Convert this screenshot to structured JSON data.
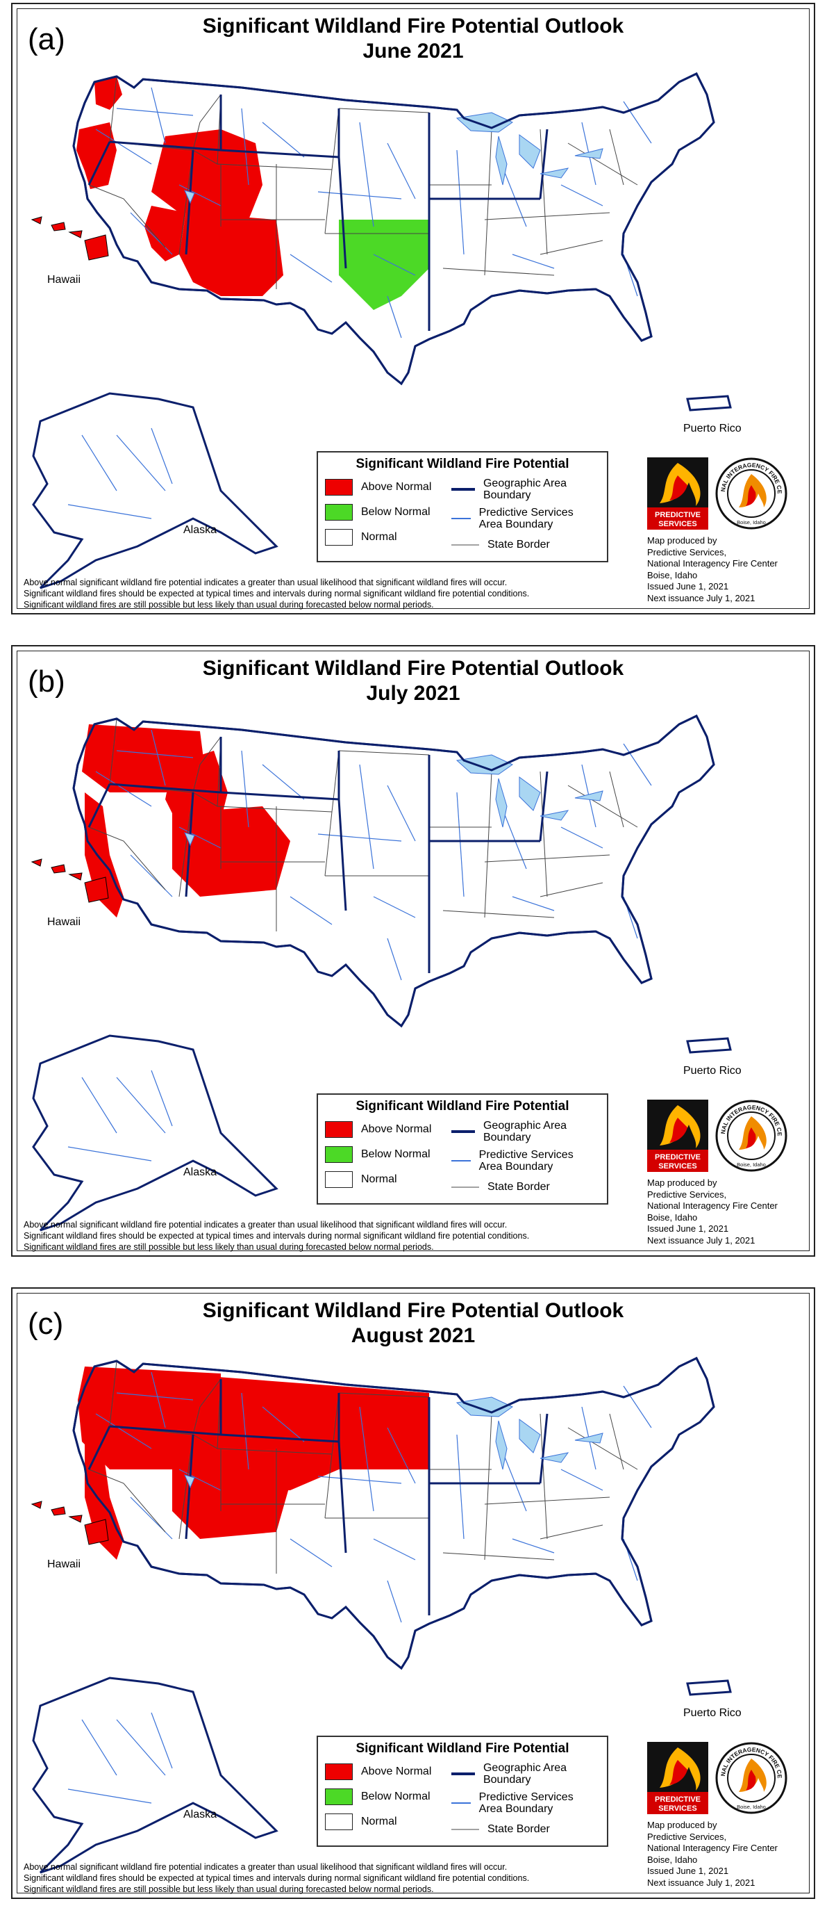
{
  "colors": {
    "above_normal": "#ee0000",
    "below_normal": "#4cd926",
    "normal": "#ffffff",
    "geo_boundary": "#0b1f6b",
    "psa_boundary": "#3b73d9",
    "state_border": "#444444",
    "lakes": "#a9d6f2"
  },
  "legend": {
    "title": "Significant Wildland Fire Potential",
    "above_normal": "Above Normal",
    "below_normal": "Below Normal",
    "normal": "Normal",
    "geo_boundary": "Geographic Area Boundary",
    "psa_boundary": "Predictive Services Area Boundary",
    "state_border": "State Border"
  },
  "map_labels": {
    "hawaii": "Hawaii",
    "alaska": "Alaska",
    "puerto_rico": "Puerto Rico"
  },
  "notes": [
    "Above normal significant wildland fire potential indicates a greater than usual likelihood that significant wildland fires will occur.",
    "Significant wildland fires should be expected at typical times and intervals during normal significant wildland fire potential conditions.",
    "Significant wildland fires are still possible but less likely than usual during forecasted below normal periods."
  ],
  "credits": {
    "line1": "Map produced by",
    "line2": "Predictive Services,",
    "line3": "National Interagency Fire Center",
    "line4": "Boise, Idaho",
    "issued": "Issued June 1, 2021",
    "next": "Next issuance July 1, 2021"
  },
  "logos": {
    "predictive_services": "PREDICTIVE SERVICES",
    "nifc": "NATIONAL INTERAGENCY FIRE CENTER",
    "nifc_place": "Boise, Idaho"
  },
  "panels": [
    {
      "letter": "(a)",
      "title_line1": "Significant Wildland Fire Potential Outlook",
      "title_line2": "June 2021",
      "above_normal_regions": [
        "oregon-north-coast",
        "oregon-west",
        "great-basin",
        "southwest",
        "southern-california"
      ],
      "below_normal_regions": [
        "southern-plains"
      ],
      "hawaii_above_normal": true
    },
    {
      "letter": "(b)",
      "title_line1": "Significant Wildland Fire Potential Outlook",
      "title_line2": "July 2021",
      "above_normal_regions": [
        "pacific-northwest",
        "idaho",
        "great-basin-east",
        "california-coast"
      ],
      "below_normal_regions": [],
      "hawaii_above_normal": true
    },
    {
      "letter": "(c)",
      "title_line1": "Significant Wildland Fire Potential Outlook",
      "title_line2": "August 2021",
      "above_normal_regions": [
        "northwest",
        "northern-rockies",
        "northern-plains",
        "great-basin-east",
        "california-coast"
      ],
      "below_normal_regions": [],
      "hawaii_above_normal": true
    }
  ]
}
